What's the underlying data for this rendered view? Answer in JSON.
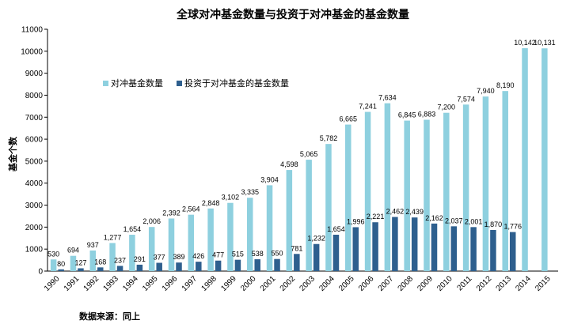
{
  "chart_data": {
    "type": "bar",
    "title": "全球对冲基金数量与投资于对冲基金的基金数量",
    "ylabel": "基金个数",
    "xlabel": "",
    "source": "数据来源：同上",
    "ylim": [
      0,
      11000
    ],
    "yticks": [
      0,
      1000,
      2000,
      3000,
      4000,
      5000,
      6000,
      7000,
      8000,
      9000,
      10000,
      11000
    ],
    "categories": [
      "1990",
      "1991",
      "1992",
      "1993",
      "1994",
      "1995",
      "1996",
      "1997",
      "1998",
      "1999",
      "2000",
      "2001",
      "2002",
      "2003",
      "2004",
      "2005",
      "2006",
      "2007",
      "2008",
      "2009",
      "2010",
      "2011",
      "2012",
      "2013",
      "2014",
      "2015"
    ],
    "series": [
      {
        "name": "对冲基金数量",
        "color": "#8ED0DF",
        "values": [
          530,
          694,
          937,
          1277,
          1654,
          2006,
          2392,
          2564,
          2848,
          3102,
          3335,
          3904,
          4598,
          5065,
          5782,
          6665,
          7241,
          7634,
          6845,
          6883,
          7200,
          7574,
          7940,
          8190,
          10142,
          10131
        ],
        "labels": [
          "530",
          "694",
          "937",
          "1,277",
          "1,654",
          "2,006",
          "2,392",
          "2,564",
          "2,848",
          "3,102",
          "3,335",
          "3,904",
          "4,598",
          "5,065",
          "5,782",
          "6,665",
          "7,241",
          "7,634",
          "6,845",
          "6,883",
          "7,200",
          "7,574",
          "7,940",
          "8,190",
          "10,142",
          "10,131"
        ]
      },
      {
        "name": "投资于对冲基金的基金数量",
        "color": "#2E5F8E",
        "values": [
          80,
          127,
          168,
          237,
          291,
          377,
          389,
          426,
          477,
          515,
          538,
          550,
          781,
          1232,
          1654,
          1996,
          2221,
          2462,
          2439,
          2162,
          2037,
          2001,
          1870,
          1776,
          null,
          null
        ],
        "labels": [
          "80",
          "127",
          "168",
          "237",
          "291",
          "377",
          "389",
          "426",
          "477",
          "515",
          "538",
          "550",
          "781",
          "1,232",
          "1,654",
          "1,996",
          "2,221",
          "2,462",
          "2,439",
          "2,162",
          "2,037",
          "2,001",
          "1,870",
          "1,776",
          "",
          ""
        ]
      }
    ],
    "legend_position": "top-left",
    "grid": false
  }
}
